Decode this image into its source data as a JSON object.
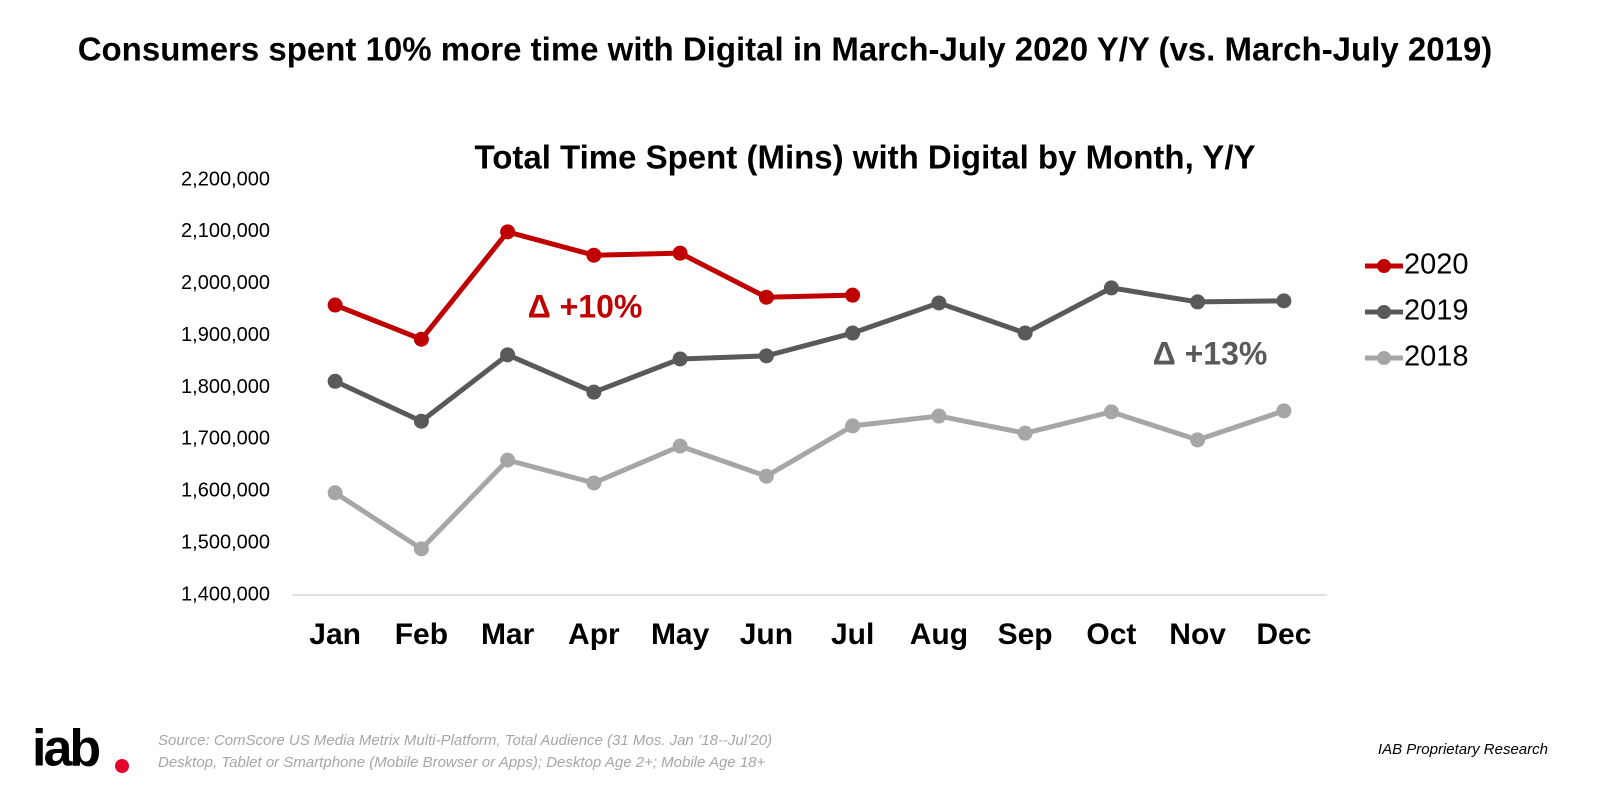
{
  "page_title": "Consumers spent 10% more time with Digital in March-July 2020 Y/Y (vs. March-July 2019)",
  "chart_data": {
    "type": "line",
    "title": "Total Time Spent (Mins) with Digital by Month, Y/Y",
    "categories": [
      "Jan",
      "Feb",
      "Mar",
      "Apr",
      "May",
      "Jun",
      "Jul",
      "Aug",
      "Sep",
      "Oct",
      "Nov",
      "Dec"
    ],
    "series": [
      {
        "name": "2020",
        "color": "#c00000",
        "values": [
          1959000,
          1893000,
          2100000,
          2055000,
          2059000,
          1974000,
          1978000,
          null,
          null,
          null,
          null,
          null
        ]
      },
      {
        "name": "2019",
        "color": "#595959",
        "values": [
          1812000,
          1735000,
          1863000,
          1791000,
          1855000,
          1861000,
          1905000,
          1963000,
          1905000,
          1992000,
          1965000,
          1967000
        ]
      },
      {
        "name": "2018",
        "color": "#a6a6a6",
        "values": [
          1597000,
          1489000,
          1660000,
          1616000,
          1687000,
          1629000,
          1726000,
          1745000,
          1712000,
          1753000,
          1699000,
          1755000
        ]
      }
    ],
    "ylim": [
      1400000,
      2200000
    ],
    "yticks": [
      {
        "value": 1400000,
        "label": "1,400,000"
      },
      {
        "value": 1500000,
        "label": "1,500,000"
      },
      {
        "value": 1600000,
        "label": "1,600,000"
      },
      {
        "value": 1700000,
        "label": "1,700,000"
      },
      {
        "value": 1800000,
        "label": "1,800,000"
      },
      {
        "value": 1900000,
        "label": "1,900,000"
      },
      {
        "value": 2000000,
        "label": "2,000,000"
      },
      {
        "value": 2100000,
        "label": "2,100,000"
      },
      {
        "value": 2200000,
        "label": "2,200,000"
      }
    ],
    "grid": false,
    "legend": "right",
    "annotations": [
      {
        "text": "Δ +10%",
        "color": "#c00000"
      },
      {
        "text": "Δ +13%",
        "color": "#595959"
      }
    ]
  },
  "footer": {
    "logo": "iab",
    "source": [
      "Source: ComScore US Media Metrix Multi-Platform, Total Audience (31 Mos. Jan ’18--Jul’20)",
      "Desktop, Tablet or Smartphone (Mobile Browser or Apps); Desktop Age 2+; Mobile Age 18+"
    ],
    "note": "IAB Proprietary Research"
  }
}
